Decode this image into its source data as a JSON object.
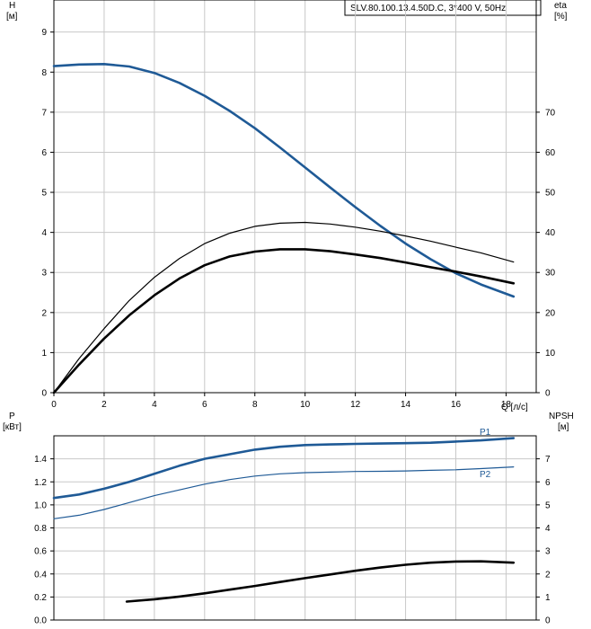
{
  "pump_label": "SLV.80.100.13.4.50D.C, 3*400 V, 50Hz",
  "chart_data": [
    {
      "type": "line",
      "panel": "top",
      "y_left_label": "H",
      "y_left_unit": "[м]",
      "y_right_label": "eta",
      "y_right_unit": "[%]",
      "x_label": "Q [л/с]",
      "xlim": [
        0,
        19.2
      ],
      "x_ticks": [
        0,
        2,
        4,
        6,
        8,
        10,
        12,
        14,
        16,
        18
      ],
      "ylim_left": [
        0,
        9.8
      ],
      "y_left_ticks": [
        0,
        1,
        2,
        3,
        4,
        5,
        6,
        7,
        8,
        9
      ],
      "ylim_right": [
        0,
        98
      ],
      "y_right_ticks": [
        0,
        10,
        20,
        30,
        40,
        50,
        60,
        70
      ],
      "grid": true,
      "series": [
        {
          "id": "H",
          "axis": "left",
          "color": "#1f5a96",
          "width": 2.6,
          "x": [
            0,
            1,
            2,
            3,
            4,
            5,
            6,
            7,
            8,
            9,
            10,
            11,
            12,
            13,
            14,
            15,
            16,
            17,
            18.3
          ],
          "y": [
            8.15,
            8.19,
            8.2,
            8.14,
            7.98,
            7.73,
            7.41,
            7.03,
            6.6,
            6.12,
            5.62,
            5.12,
            4.63,
            4.16,
            3.72,
            3.33,
            2.98,
            2.7,
            2.4
          ]
        },
        {
          "id": "eta_thin",
          "axis": "right",
          "color": "#000000",
          "width": 1.2,
          "x": [
            0,
            1,
            2,
            3,
            4,
            5,
            6,
            7,
            8,
            9,
            10,
            11,
            12,
            13,
            14,
            15,
            16,
            17,
            18.3
          ],
          "y": [
            0,
            8.5,
            16,
            23,
            28.8,
            33.5,
            37.2,
            39.8,
            41.5,
            42.3,
            42.5,
            42.1,
            41.3,
            40.3,
            39.1,
            37.8,
            36.3,
            34.9,
            32.6
          ]
        },
        {
          "id": "eta_thick",
          "axis": "right",
          "color": "#000000",
          "width": 2.6,
          "x": [
            0,
            1,
            2,
            3,
            4,
            5,
            6,
            7,
            8,
            9,
            10,
            11,
            12,
            13,
            14,
            15,
            16,
            17,
            18.3
          ],
          "y": [
            0,
            7,
            13.5,
            19.3,
            24.3,
            28.5,
            31.8,
            34,
            35.2,
            35.8,
            35.8,
            35.3,
            34.5,
            33.6,
            32.5,
            31.3,
            30.2,
            29,
            27.3
          ]
        }
      ]
    },
    {
      "type": "line",
      "panel": "bottom",
      "y_left_label": "P",
      "y_left_unit": "[кВт]",
      "y_right_label": "NPSH",
      "y_right_unit": "[м]",
      "xlim": [
        0,
        19.2
      ],
      "ylim_left": [
        0,
        1.6
      ],
      "y_left_ticks": [
        "0.0",
        "0.2",
        "0.4",
        "0.6",
        "0.8",
        "1.0",
        "1.2",
        "1.4"
      ],
      "ylim_right": [
        0,
        8
      ],
      "y_right_ticks": [
        0,
        1,
        2,
        3,
        4,
        5,
        6,
        7
      ],
      "grid": true,
      "series": [
        {
          "id": "P1",
          "name": "P1",
          "axis": "left",
          "color": "#1f5a96",
          "width": 2.6,
          "x": [
            0,
            1,
            2,
            3,
            4,
            5,
            6,
            7,
            8,
            9,
            10,
            11,
            12,
            13,
            14,
            15,
            16,
            17,
            18.3
          ],
          "y": [
            1.06,
            1.09,
            1.14,
            1.2,
            1.27,
            1.34,
            1.4,
            1.44,
            1.48,
            1.505,
            1.52,
            1.525,
            1.53,
            1.533,
            1.536,
            1.54,
            1.55,
            1.56,
            1.58
          ]
        },
        {
          "id": "P2",
          "name": "P2",
          "axis": "left",
          "color": "#1f5a96",
          "width": 1.2,
          "x": [
            0,
            1,
            2,
            3,
            4,
            5,
            6,
            7,
            8,
            9,
            10,
            11,
            12,
            13,
            14,
            15,
            16,
            17,
            18.3
          ],
          "y": [
            0.88,
            0.91,
            0.96,
            1.02,
            1.08,
            1.13,
            1.18,
            1.22,
            1.25,
            1.27,
            1.28,
            1.285,
            1.29,
            1.292,
            1.295,
            1.3,
            1.305,
            1.315,
            1.33
          ]
        },
        {
          "id": "NPSH",
          "axis": "right",
          "color": "#000000",
          "width": 2.6,
          "x": [
            2.9,
            4,
            5,
            6,
            7,
            8,
            9,
            10,
            11,
            12,
            13,
            14,
            15,
            16,
            17,
            18.3
          ],
          "y": [
            0.8,
            0.9,
            1.02,
            1.16,
            1.32,
            1.48,
            1.65,
            1.82,
            1.98,
            2.14,
            2.28,
            2.4,
            2.49,
            2.54,
            2.55,
            2.49
          ]
        }
      ]
    }
  ]
}
